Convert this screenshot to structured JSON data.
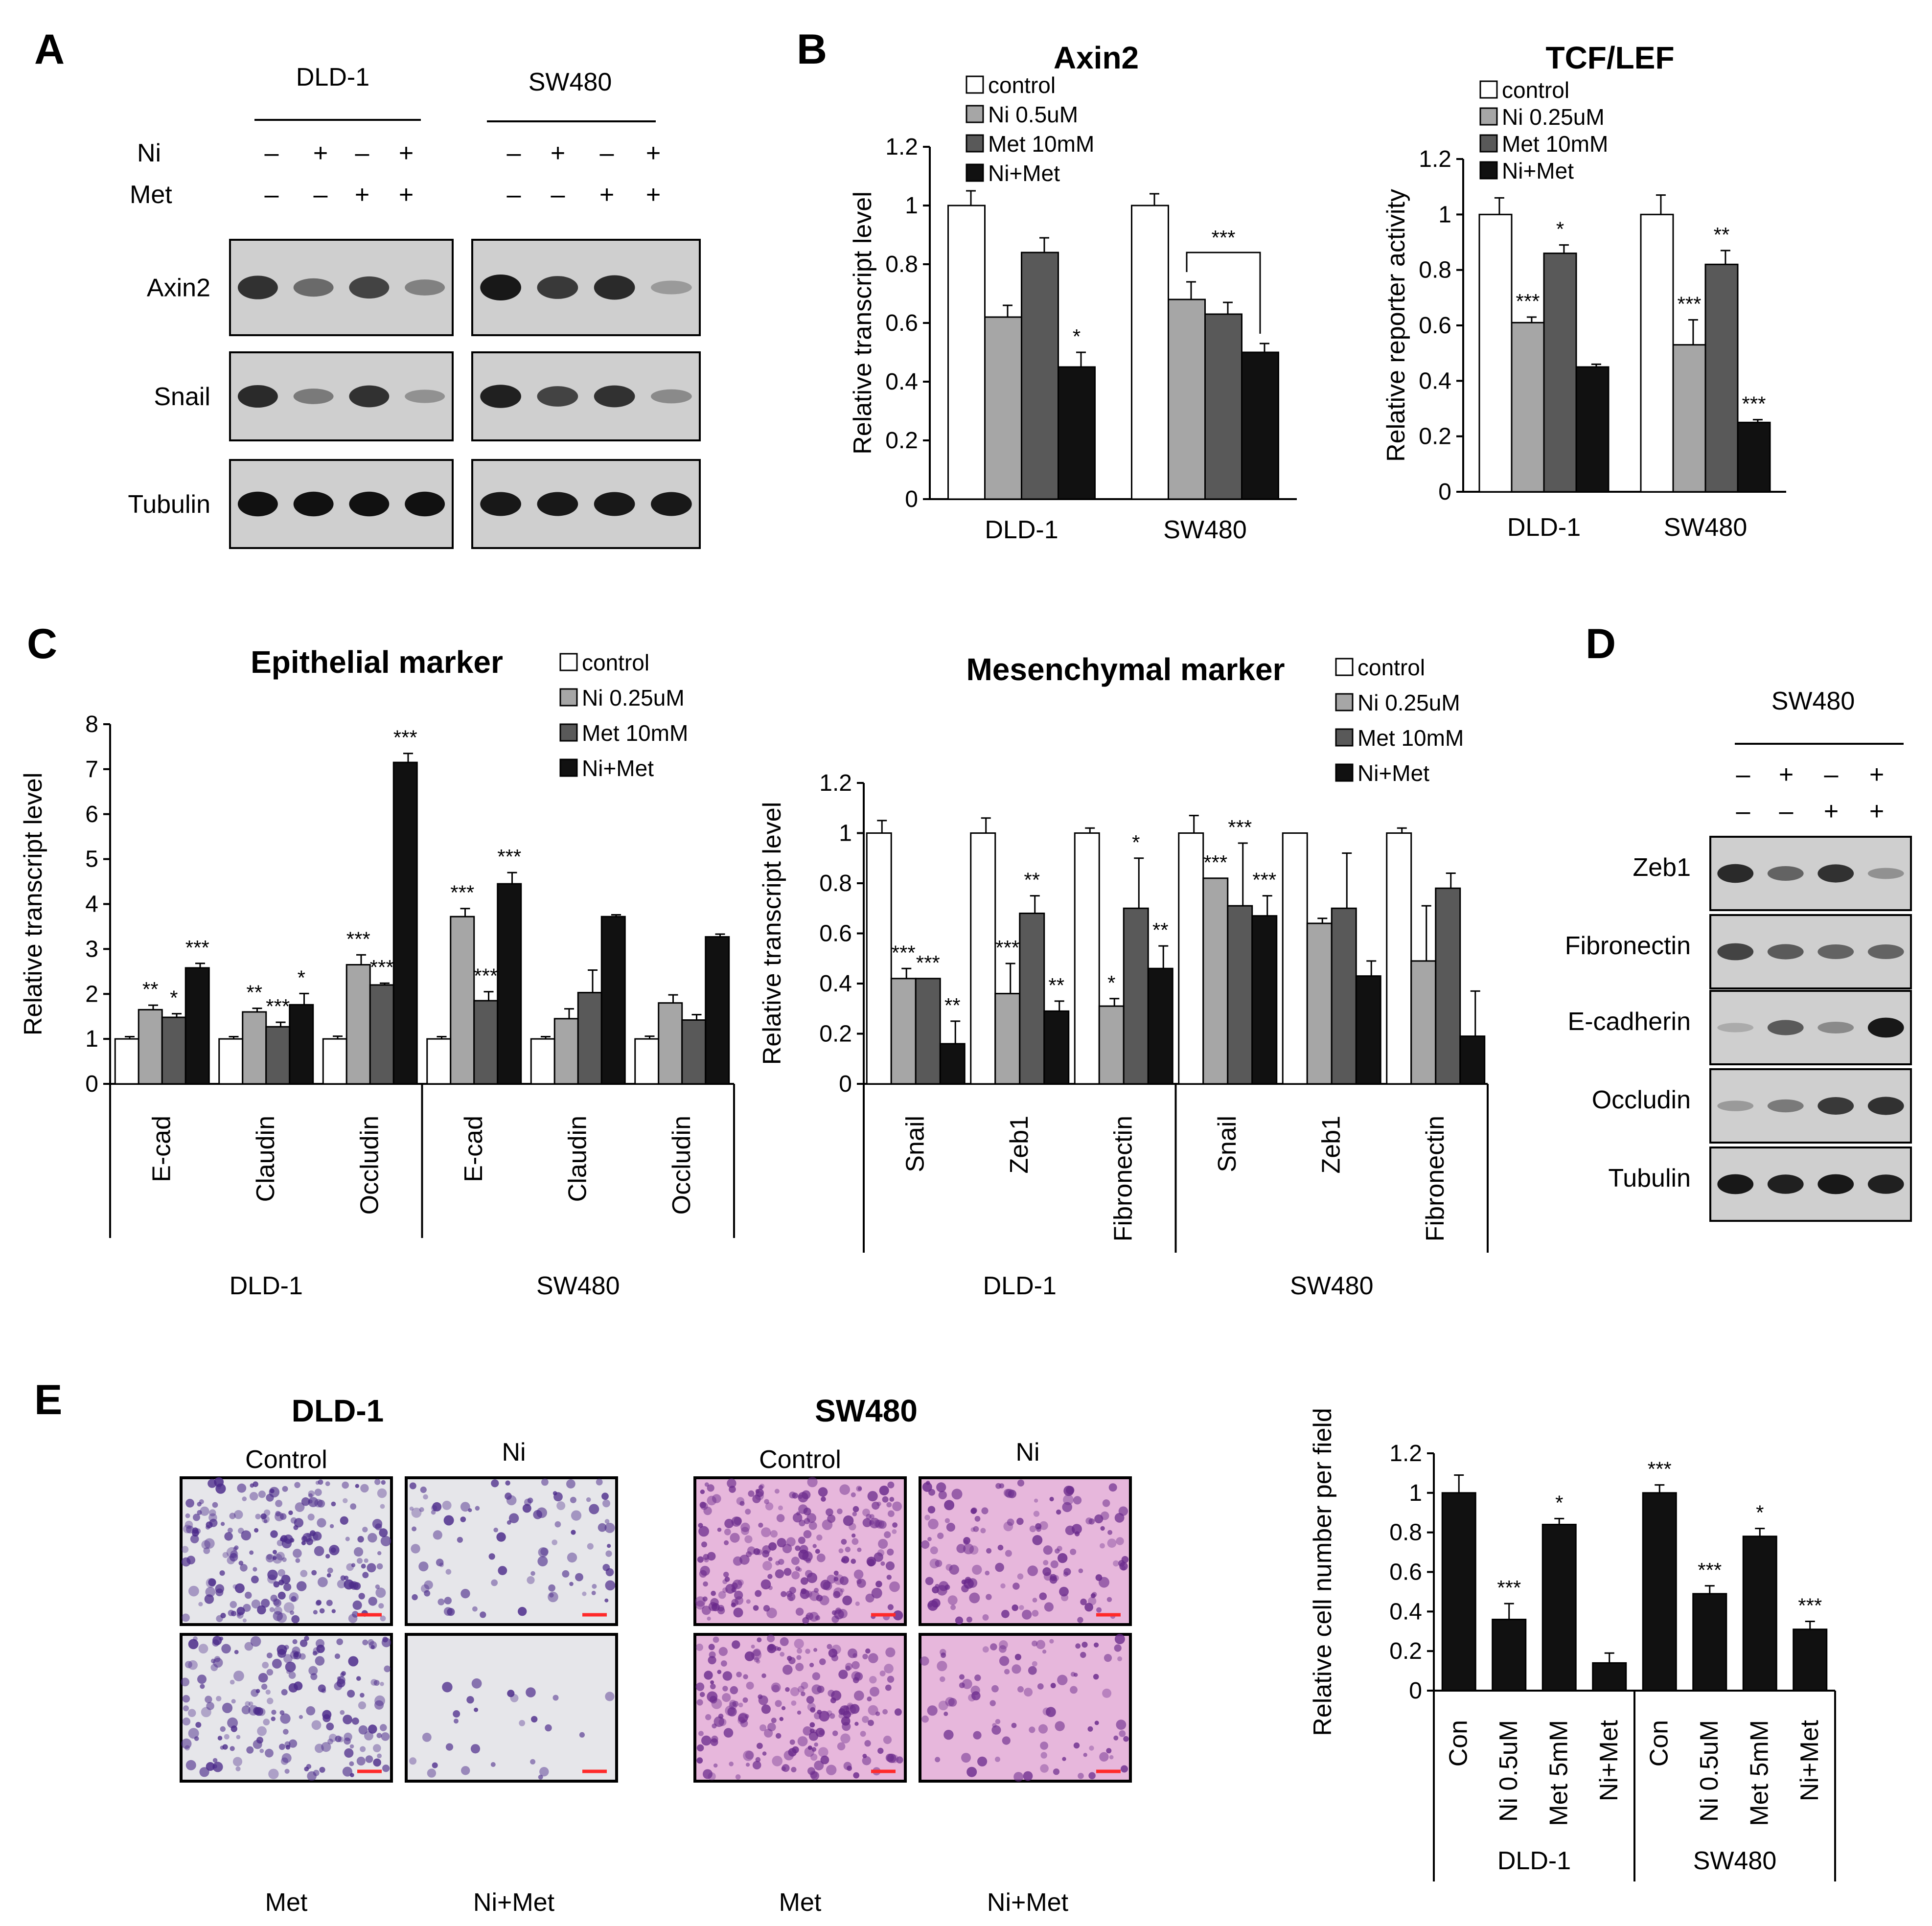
{
  "panels": {
    "A": "A",
    "B": "B",
    "C": "C",
    "D": "D",
    "E": "E"
  },
  "colors": {
    "control": "#ffffff",
    "ni": "#a6a6a6",
    "met": "#595959",
    "nimet": "#111111",
    "crystal_violet": "#7a3ea0",
    "scale_bar": "#ff2a2a"
  },
  "panelA": {
    "cell_lines": [
      "DLD-1",
      "SW480"
    ],
    "treat_labels": [
      "Ni",
      "Met"
    ],
    "ni_signs": [
      "–",
      "+",
      "–",
      "+"
    ],
    "met_signs": [
      "–",
      "–",
      "+",
      "+"
    ],
    "blots": [
      {
        "label": "Axin2",
        "dld1": [
          0.8,
          0.45,
          0.7,
          0.3
        ],
        "sw480": [
          0.95,
          0.75,
          0.85,
          0.15
        ]
      },
      {
        "label": "Snail",
        "dld1": [
          0.85,
          0.35,
          0.8,
          0.2
        ],
        "sw480": [
          0.9,
          0.7,
          0.8,
          0.25
        ]
      },
      {
        "label": "Tubulin",
        "dld1": [
          1,
          1,
          1,
          1
        ],
        "sw480": [
          0.95,
          0.95,
          0.95,
          0.95
        ]
      }
    ]
  },
  "panelD": {
    "cell_line": "SW480",
    "ni_signs": [
      "–",
      "+",
      "–",
      "+"
    ],
    "met_signs": [
      "–",
      "–",
      "+",
      "+"
    ],
    "blots": [
      {
        "label": "Zeb1",
        "levels": [
          0.85,
          0.5,
          0.8,
          0.2
        ]
      },
      {
        "label": "Fibronectin",
        "levels": [
          0.7,
          0.55,
          0.5,
          0.5
        ]
      },
      {
        "label": "E-cadherin",
        "levels": [
          0.05,
          0.55,
          0.25,
          0.95
        ]
      },
      {
        "label": "Occludin",
        "levels": [
          0.15,
          0.35,
          0.75,
          0.8
        ]
      },
      {
        "label": "Tubulin",
        "levels": [
          0.95,
          0.9,
          0.95,
          0.9
        ]
      }
    ]
  },
  "panelE": {
    "groups": [
      {
        "title": "DLD-1",
        "top": [
          "Control",
          "Ni"
        ],
        "bottom": [
          "Met",
          "Ni+Met"
        ],
        "density": [
          0.85,
          0.35,
          0.7,
          0.1
        ],
        "bg": "#e6e6ea",
        "dot": "#4b2a8a"
      },
      {
        "title": "SW480",
        "top": [
          "Control",
          "Ni"
        ],
        "bottom": [
          "Met",
          "Ni+Met"
        ],
        "density": [
          0.9,
          0.55,
          0.8,
          0.35
        ],
        "bg": "#e7b7dc",
        "dot": "#6a2a8c"
      }
    ]
  },
  "chart_data": [
    {
      "type": "bar",
      "title": "Axin2",
      "ylabel": "Relative transcript level",
      "categories": [
        "DLD-1",
        "SW480"
      ],
      "ylim": [
        0,
        1.2
      ],
      "yticks": [
        "0",
        "0.2",
        "0.4",
        "0.6",
        "0.8",
        "1",
        "1.2"
      ],
      "series": [
        {
          "name": "control",
          "values": [
            1.0,
            1.0
          ],
          "err": [
            0.05,
            0.04
          ]
        },
        {
          "name": "Ni 0.5uM",
          "values": [
            0.62,
            0.68
          ],
          "err": [
            0.04,
            0.06
          ]
        },
        {
          "name": "Met 10mM",
          "values": [
            0.84,
            0.63
          ],
          "err": [
            0.05,
            0.04
          ]
        },
        {
          "name": "Ni+Met",
          "values": [
            0.45,
            0.5
          ],
          "err": [
            0.05,
            0.03
          ]
        }
      ],
      "annotations": [
        {
          "text": "*",
          "group": 0,
          "series": 3
        },
        {
          "text": "***",
          "group": 1,
          "bracket": [
            1,
            3
          ]
        }
      ]
    },
    {
      "type": "bar",
      "title": "TCF/LEF",
      "ylabel": "Relative reporter activity",
      "categories": [
        "DLD-1",
        "SW480"
      ],
      "ylim": [
        0,
        1.2
      ],
      "yticks": [
        "0",
        "0.2",
        "0.4",
        "0.6",
        "0.8",
        "1",
        "1.2"
      ],
      "series": [
        {
          "name": "control",
          "values": [
            1.0,
            1.0
          ],
          "err": [
            0.06,
            0.07
          ]
        },
        {
          "name": "Ni 0.25uM",
          "values": [
            0.61,
            0.53
          ],
          "err": [
            0.02,
            0.09
          ]
        },
        {
          "name": "Met 10mM",
          "values": [
            0.86,
            0.82
          ],
          "err": [
            0.03,
            0.05
          ]
        },
        {
          "name": "Ni+Met",
          "values": [
            0.45,
            0.25
          ],
          "err": [
            0.01,
            0.01
          ]
        }
      ],
      "annotations": [
        {
          "text": "***",
          "group": 0,
          "series": 1
        },
        {
          "text": "*",
          "group": 0,
          "series": 2
        },
        {
          "text": "***",
          "group": 1,
          "series": 1
        },
        {
          "text": "**",
          "group": 1,
          "series": 2
        },
        {
          "text": "***",
          "group": 1,
          "series": 3
        }
      ]
    },
    {
      "type": "bar",
      "title": "Epithelial marker",
      "ylabel": "Relative  transcript level",
      "categories": [
        "E-cad",
        "Claudin",
        "Occludin",
        "E-cad",
        "Claudin",
        "Occludin"
      ],
      "cell_lines": [
        "DLD-1",
        "SW480"
      ],
      "ylim": [
        0,
        8
      ],
      "yticks": [
        "0",
        "1",
        "2",
        "3",
        "4",
        "5",
        "6",
        "7",
        "8"
      ],
      "series": [
        {
          "name": "control",
          "values": [
            1.0,
            1.0,
            1.0,
            1.0,
            1.0,
            1.0
          ],
          "err": [
            0.05,
            0.05,
            0.06,
            0.05,
            0.05,
            0.06
          ]
        },
        {
          "name": "Ni 0.25uM",
          "values": [
            1.65,
            1.6,
            2.65,
            3.72,
            1.45,
            1.8
          ],
          "err": [
            0.1,
            0.08,
            0.22,
            0.18,
            0.22,
            0.18
          ]
        },
        {
          "name": "Met 10mM",
          "values": [
            1.48,
            1.27,
            2.2,
            1.85,
            2.03,
            1.42
          ],
          "err": [
            0.08,
            0.1,
            0.04,
            0.2,
            0.5,
            0.12
          ]
        },
        {
          "name": "Ni+Met",
          "values": [
            2.58,
            1.76,
            7.15,
            4.45,
            3.72,
            3.27
          ],
          "err": [
            0.1,
            0.25,
            0.2,
            0.25,
            0.04,
            0.06
          ]
        }
      ],
      "annotations": [
        "**",
        "*",
        "***",
        "**",
        "***",
        "*",
        "***",
        "***",
        "***",
        "***",
        "***",
        "***"
      ]
    },
    {
      "type": "bar",
      "title": "Mesenchymal marker",
      "ylabel": "Relative  transcript level",
      "categories": [
        "Snail",
        "Zeb1",
        "Fibronectin",
        "Snail",
        "Zeb1",
        "Fibronectin"
      ],
      "cell_lines": [
        "DLD-1",
        "SW480"
      ],
      "ylim": [
        0,
        1.2
      ],
      "yticks": [
        "0",
        "0.2",
        "0.4",
        "0.6",
        "0.8",
        "1",
        "1.2"
      ],
      "series": [
        {
          "name": "control",
          "values": [
            1.0,
            1.0,
            1.0,
            1.0,
            1.0,
            1.0
          ],
          "err": [
            0.05,
            0.06,
            0.02,
            0.07,
            0.0,
            0.02
          ]
        },
        {
          "name": "Ni 0.25uM",
          "values": [
            0.42,
            0.36,
            0.31,
            0.82,
            0.64,
            0.49
          ],
          "err": [
            0.04,
            0.12,
            0.03,
            0.0,
            0.02,
            0.22
          ]
        },
        {
          "name": "Met 10mM",
          "values": [
            0.42,
            0.68,
            0.7,
            0.71,
            0.7,
            0.78
          ],
          "err": [
            0.0,
            0.07,
            0.2,
            0.25,
            0.22,
            0.06
          ]
        },
        {
          "name": "Ni+Met",
          "values": [
            0.16,
            0.29,
            0.46,
            0.67,
            0.43,
            0.19
          ],
          "err": [
            0.09,
            0.04,
            0.09,
            0.08,
            0.06,
            0.18
          ]
        }
      ],
      "annotations": [
        "***",
        "***",
        "**",
        "***",
        "**",
        "**",
        "*",
        "*",
        "**",
        "***",
        "***",
        "***"
      ]
    },
    {
      "type": "bar",
      "ylabel": "Relative cell number per field",
      "categories": [
        "Con",
        "Ni 0.5uM",
        "Met 5mM",
        "Ni+Met",
        "Con",
        "Ni 0.5uM",
        "Met 5mM",
        "Ni+Met"
      ],
      "cell_lines": [
        "DLD-1",
        "SW480"
      ],
      "ylim": [
        0,
        1.2
      ],
      "yticks": [
        "0",
        "0.2",
        "0.4",
        "0.6",
        "0.8",
        "1",
        "1.2"
      ],
      "values": [
        1.0,
        0.36,
        0.84,
        0.14,
        1.0,
        0.49,
        0.78,
        0.31
      ],
      "err": [
        0.09,
        0.08,
        0.03,
        0.05,
        0.04,
        0.04,
        0.04,
        0.04
      ],
      "annotations": [
        "",
        "***",
        "*",
        "",
        "***",
        "***",
        "*",
        "***"
      ]
    }
  ]
}
